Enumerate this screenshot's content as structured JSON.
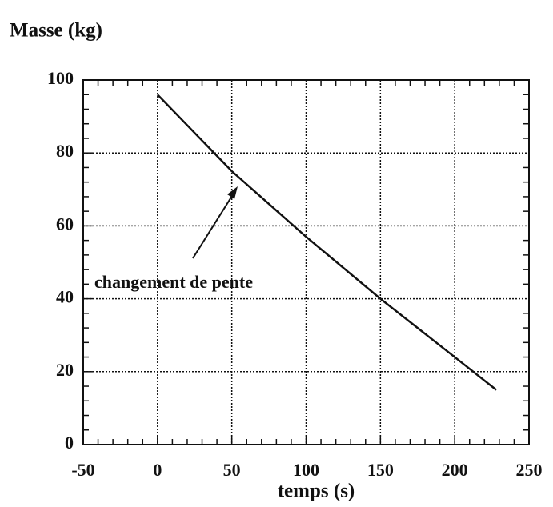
{
  "chart_data": {
    "type": "line",
    "title": "Masse (kg)",
    "x_label": "temps (s)",
    "x": [
      0,
      50,
      100,
      150,
      200,
      228
    ],
    "series": [
      {
        "name": null,
        "color": "#111111",
        "values": [
          96,
          75,
          57,
          40,
          24,
          15
        ]
      }
    ],
    "xlim": [
      -50,
      250
    ],
    "xticks": [
      -50,
      0,
      50,
      100,
      150,
      200,
      250
    ],
    "ylim": [
      0,
      100
    ],
    "yticks": [
      0,
      20,
      40,
      60,
      80,
      100
    ],
    "grid": true,
    "annotations": [
      {
        "text": "changement de pente"
      }
    ]
  }
}
